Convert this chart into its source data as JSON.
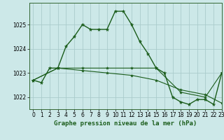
{
  "title": "Graphe pression niveau de la mer (hPa)",
  "background_color": "#cce8e8",
  "grid_color": "#aacccc",
  "line_color": "#1a5c1a",
  "marker_color": "#1a5c1a",
  "xlim": [
    -0.5,
    23
  ],
  "ylim": [
    1021.5,
    1025.9
  ],
  "yticks": [
    1022,
    1023,
    1024,
    1025
  ],
  "xticks": [
    0,
    1,
    2,
    3,
    4,
    5,
    6,
    7,
    8,
    9,
    10,
    11,
    12,
    13,
    14,
    15,
    16,
    17,
    18,
    19,
    20,
    21,
    22,
    23
  ],
  "series": [
    {
      "x": [
        0,
        1,
        2,
        3,
        4,
        5,
        6,
        7,
        8,
        9,
        10,
        11,
        12,
        13,
        14,
        15,
        16,
        17,
        18,
        19,
        20,
        21,
        22,
        23
      ],
      "y": [
        1022.7,
        1022.6,
        1023.2,
        1023.2,
        1024.1,
        1024.5,
        1025.0,
        1024.8,
        1024.8,
        1024.8,
        1025.55,
        1025.55,
        1025.0,
        1024.3,
        1023.8,
        1023.2,
        1023.0,
        1022.0,
        1021.8,
        1021.7,
        1021.9,
        1021.9,
        1021.7,
        1023.0
      ]
    },
    {
      "x": [
        0,
        3,
        6,
        9,
        12,
        15,
        18,
        21,
        23
      ],
      "y": [
        1022.7,
        1023.2,
        1023.2,
        1023.2,
        1023.2,
        1023.2,
        1022.2,
        1022.0,
        1023.0
      ]
    },
    {
      "x": [
        0,
        3,
        6,
        9,
        12,
        15,
        18,
        21,
        23
      ],
      "y": [
        1022.7,
        1023.2,
        1023.1,
        1023.0,
        1022.9,
        1022.7,
        1022.3,
        1022.1,
        1021.75
      ]
    }
  ],
  "font_size_label": 6.5,
  "font_size_tick": 5.5
}
